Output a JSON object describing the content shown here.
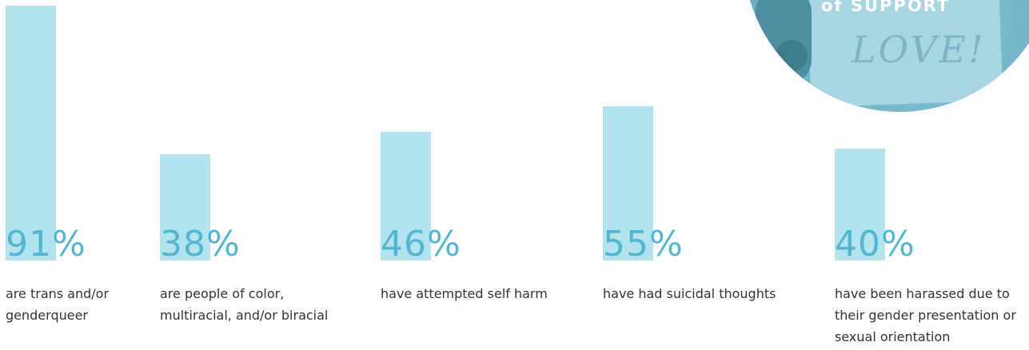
{
  "chart_data": {
    "type": "bar",
    "ylim": [
      0,
      100
    ],
    "colors": {
      "bar": "#b3e3ee",
      "value_text": "#51b6cf",
      "label_text": "#333333"
    },
    "items": [
      {
        "value": 91,
        "value_label": "91%",
        "label": "are trans and/or genderqueer"
      },
      {
        "value": 38,
        "value_label": "38%",
        "label": "are people of color, multiracial, and/or biracial"
      },
      {
        "value": 46,
        "value_label": "46%",
        "label": "have attempted self harm"
      },
      {
        "value": 55,
        "value_label": "55%",
        "label": "have had suicidal thoughts"
      },
      {
        "value": 40,
        "value_label": "40%",
        "label": "have been harassed due to their gender presentation or sexual orientation"
      }
    ]
  },
  "photo": {
    "sign_top": "of SUPPORT",
    "sign_text": "LOVE!"
  }
}
